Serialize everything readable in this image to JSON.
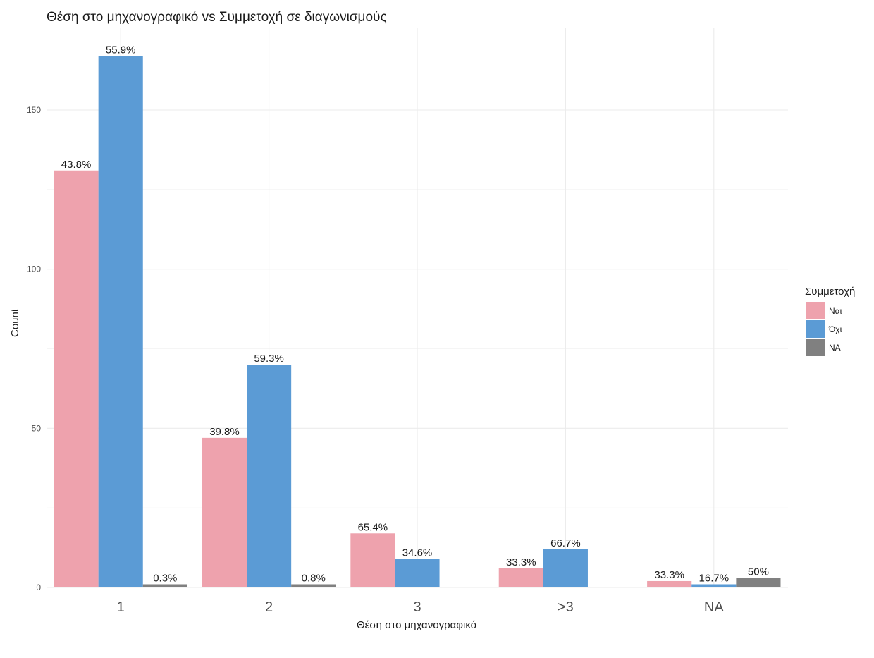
{
  "chart_data": {
    "type": "bar",
    "title": "Θέση στο μηχανογραφικό vs Συμμετοχή σε διαγωνισμούς",
    "xlabel": "Θέση στο μηχανογραφικό",
    "ylabel": "Count",
    "categories": [
      "1",
      "2",
      "3",
      ">3",
      "NA"
    ],
    "ylim": [
      0,
      170
    ],
    "yticks": [
      0,
      50,
      100,
      150
    ],
    "grid": true,
    "legend": {
      "title": "Συμμετοχή",
      "position": "right"
    },
    "series": [
      {
        "name": "Ναι",
        "color": "#eea2ad",
        "values": [
          131,
          47,
          17,
          6,
          2
        ],
        "labels": [
          "43.8%",
          "39.8%",
          "65.4%",
          "33.3%",
          "33.3%"
        ]
      },
      {
        "name": "Όχι",
        "color": "#5b9bd5",
        "values": [
          167,
          70,
          9,
          12,
          1
        ],
        "labels": [
          "55.9%",
          "59.3%",
          "34.6%",
          "66.7%",
          "16.7%"
        ]
      },
      {
        "name": "NA",
        "color": "#808080",
        "values": [
          1,
          1,
          null,
          null,
          3
        ],
        "labels": [
          "0.3%",
          "0.8%",
          null,
          null,
          "50%"
        ]
      }
    ]
  }
}
